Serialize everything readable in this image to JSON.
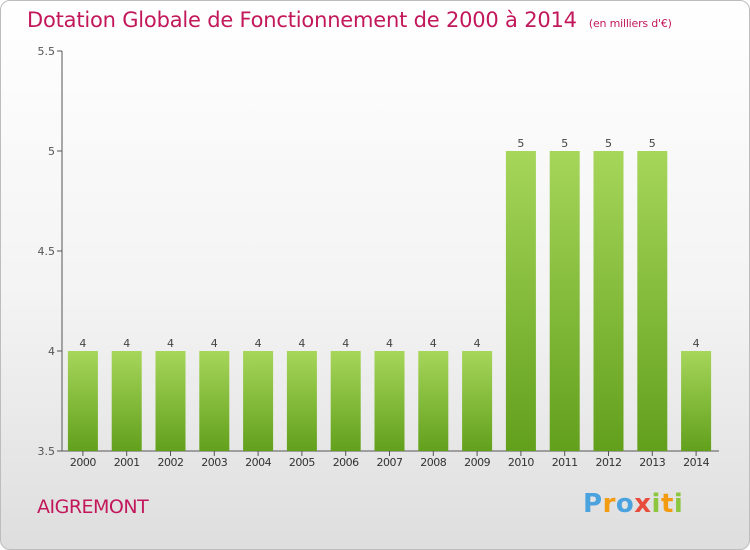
{
  "title": {
    "main": "Dotation Globale de Fonctionnement de 2000 à 2014",
    "unit": "(en milliers d'€)"
  },
  "commune": "AIGREMONT",
  "logo": {
    "text": "Proxiti"
  },
  "colors": {
    "title": "#c2185b",
    "bar_top": "#a6d65a",
    "bar_bottom": "#62a01c",
    "axis": "#555555"
  },
  "chart_data": {
    "type": "bar",
    "title": "Dotation Globale de Fonctionnement de 2000 à 2014",
    "xlabel": "",
    "ylabel": "",
    "categories": [
      "2000",
      "2001",
      "2002",
      "2003",
      "2004",
      "2005",
      "2006",
      "2007",
      "2008",
      "2009",
      "2010",
      "2011",
      "2012",
      "2013",
      "2014"
    ],
    "values": [
      4,
      4,
      4,
      4,
      4,
      4,
      4,
      4,
      4,
      4,
      5,
      5,
      5,
      5,
      4
    ],
    "data_labels": [
      "4",
      "4",
      "4",
      "4",
      "4",
      "4",
      "4",
      "4",
      "4",
      "4",
      "5",
      "5",
      "5",
      "5",
      "4"
    ],
    "ylim": [
      3.5,
      5.5
    ],
    "yticks": [
      "3.5",
      "4",
      "4.5",
      "5",
      "5.5"
    ],
    "grid": false,
    "legend": "none"
  }
}
